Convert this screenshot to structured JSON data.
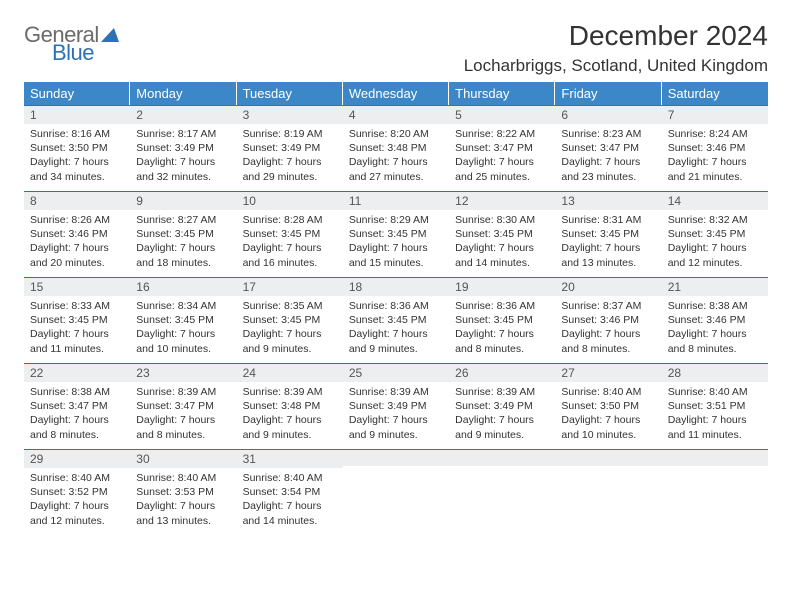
{
  "logo": {
    "word1": "General",
    "word2": "Blue"
  },
  "title": "December 2024",
  "location": "Locharbriggs, Scotland, United Kingdom",
  "colors": {
    "header_bg": "#3c87c7",
    "header_text": "#ffffff",
    "rule": "#2e72b5",
    "daynum_bg": "#eceeef",
    "logo_gray": "#6b6b6b",
    "logo_blue": "#2e72b5"
  },
  "dow": [
    "Sunday",
    "Monday",
    "Tuesday",
    "Wednesday",
    "Thursday",
    "Friday",
    "Saturday"
  ],
  "weeks": [
    [
      {
        "n": "1",
        "sr": "8:16 AM",
        "ss": "3:50 PM",
        "dl": "7 hours and 34 minutes."
      },
      {
        "n": "2",
        "sr": "8:17 AM",
        "ss": "3:49 PM",
        "dl": "7 hours and 32 minutes."
      },
      {
        "n": "3",
        "sr": "8:19 AM",
        "ss": "3:49 PM",
        "dl": "7 hours and 29 minutes."
      },
      {
        "n": "4",
        "sr": "8:20 AM",
        "ss": "3:48 PM",
        "dl": "7 hours and 27 minutes."
      },
      {
        "n": "5",
        "sr": "8:22 AM",
        "ss": "3:47 PM",
        "dl": "7 hours and 25 minutes."
      },
      {
        "n": "6",
        "sr": "8:23 AM",
        "ss": "3:47 PM",
        "dl": "7 hours and 23 minutes."
      },
      {
        "n": "7",
        "sr": "8:24 AM",
        "ss": "3:46 PM",
        "dl": "7 hours and 21 minutes."
      }
    ],
    [
      {
        "n": "8",
        "sr": "8:26 AM",
        "ss": "3:46 PM",
        "dl": "7 hours and 20 minutes."
      },
      {
        "n": "9",
        "sr": "8:27 AM",
        "ss": "3:45 PM",
        "dl": "7 hours and 18 minutes."
      },
      {
        "n": "10",
        "sr": "8:28 AM",
        "ss": "3:45 PM",
        "dl": "7 hours and 16 minutes."
      },
      {
        "n": "11",
        "sr": "8:29 AM",
        "ss": "3:45 PM",
        "dl": "7 hours and 15 minutes."
      },
      {
        "n": "12",
        "sr": "8:30 AM",
        "ss": "3:45 PM",
        "dl": "7 hours and 14 minutes."
      },
      {
        "n": "13",
        "sr": "8:31 AM",
        "ss": "3:45 PM",
        "dl": "7 hours and 13 minutes."
      },
      {
        "n": "14",
        "sr": "8:32 AM",
        "ss": "3:45 PM",
        "dl": "7 hours and 12 minutes."
      }
    ],
    [
      {
        "n": "15",
        "sr": "8:33 AM",
        "ss": "3:45 PM",
        "dl": "7 hours and 11 minutes."
      },
      {
        "n": "16",
        "sr": "8:34 AM",
        "ss": "3:45 PM",
        "dl": "7 hours and 10 minutes."
      },
      {
        "n": "17",
        "sr": "8:35 AM",
        "ss": "3:45 PM",
        "dl": "7 hours and 9 minutes."
      },
      {
        "n": "18",
        "sr": "8:36 AM",
        "ss": "3:45 PM",
        "dl": "7 hours and 9 minutes."
      },
      {
        "n": "19",
        "sr": "8:36 AM",
        "ss": "3:45 PM",
        "dl": "7 hours and 8 minutes."
      },
      {
        "n": "20",
        "sr": "8:37 AM",
        "ss": "3:46 PM",
        "dl": "7 hours and 8 minutes."
      },
      {
        "n": "21",
        "sr": "8:38 AM",
        "ss": "3:46 PM",
        "dl": "7 hours and 8 minutes."
      }
    ],
    [
      {
        "n": "22",
        "sr": "8:38 AM",
        "ss": "3:47 PM",
        "dl": "7 hours and 8 minutes."
      },
      {
        "n": "23",
        "sr": "8:39 AM",
        "ss": "3:47 PM",
        "dl": "7 hours and 8 minutes."
      },
      {
        "n": "24",
        "sr": "8:39 AM",
        "ss": "3:48 PM",
        "dl": "7 hours and 9 minutes."
      },
      {
        "n": "25",
        "sr": "8:39 AM",
        "ss": "3:49 PM",
        "dl": "7 hours and 9 minutes."
      },
      {
        "n": "26",
        "sr": "8:39 AM",
        "ss": "3:49 PM",
        "dl": "7 hours and 9 minutes."
      },
      {
        "n": "27",
        "sr": "8:40 AM",
        "ss": "3:50 PM",
        "dl": "7 hours and 10 minutes."
      },
      {
        "n": "28",
        "sr": "8:40 AM",
        "ss": "3:51 PM",
        "dl": "7 hours and 11 minutes."
      }
    ],
    [
      {
        "n": "29",
        "sr": "8:40 AM",
        "ss": "3:52 PM",
        "dl": "7 hours and 12 minutes."
      },
      {
        "n": "30",
        "sr": "8:40 AM",
        "ss": "3:53 PM",
        "dl": "7 hours and 13 minutes."
      },
      {
        "n": "31",
        "sr": "8:40 AM",
        "ss": "3:54 PM",
        "dl": "7 hours and 14 minutes."
      },
      null,
      null,
      null,
      null
    ]
  ],
  "labels": {
    "sunrise": "Sunrise:",
    "sunset": "Sunset:",
    "daylight": "Daylight:"
  }
}
